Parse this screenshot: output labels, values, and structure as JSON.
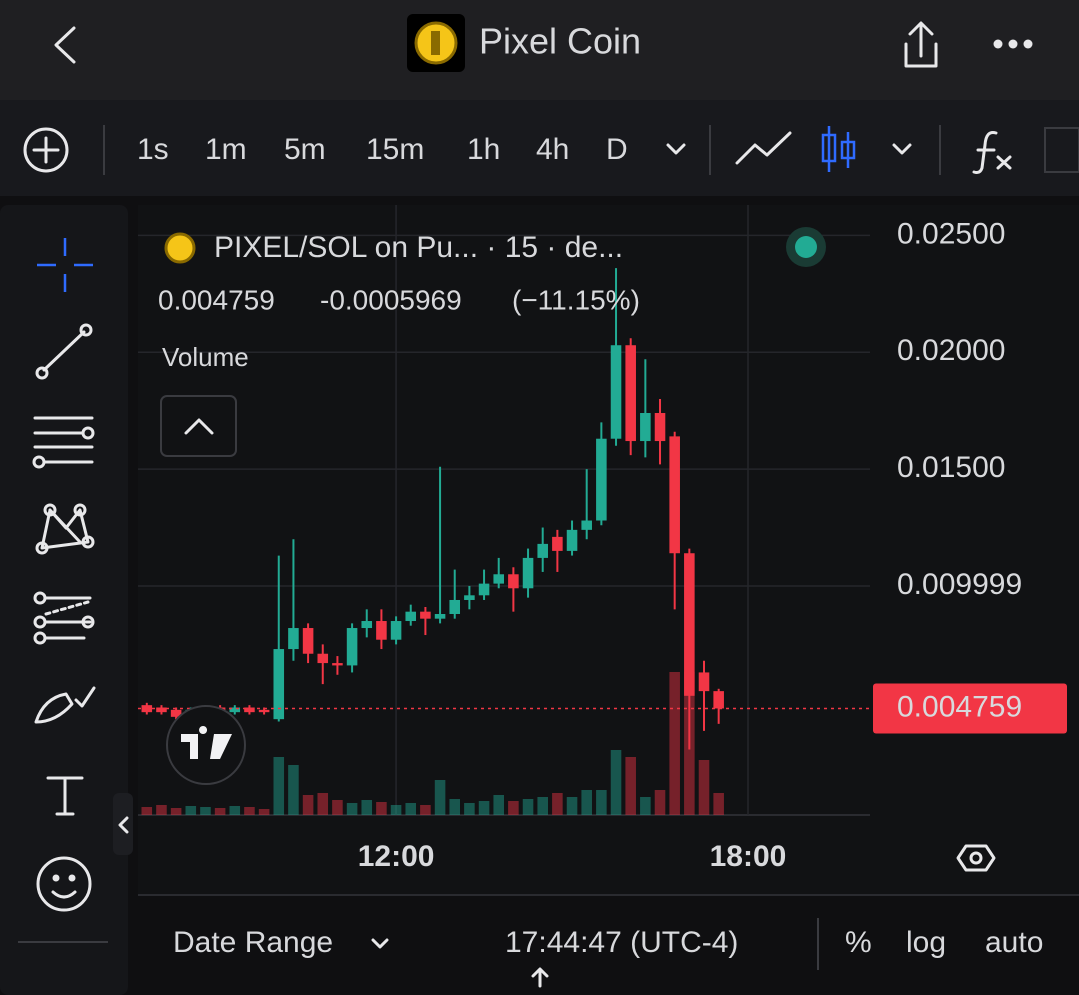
{
  "top_bar": {
    "title": "Pixel Coin"
  },
  "toolbar": {
    "intervals": [
      "1s",
      "1m",
      "5m",
      "15m",
      "1h",
      "4h",
      "D"
    ],
    "active": 3
  },
  "chart_data": {
    "type": "candlestick",
    "symbol": "PIXEL/SOL on Pu... · 15 · de...",
    "legend": {
      "price": "0.004759",
      "change": "-0.0005969",
      "change_pct": "(−11.15%)"
    },
    "volume_title": "Volume",
    "x": [
      7.75,
      8,
      8.25,
      8.5,
      8.75,
      9,
      9.25,
      9.5,
      9.75,
      10,
      10.25,
      10.5,
      10.75,
      11,
      11.25,
      11.5,
      11.75,
      12,
      12.25,
      12.5,
      12.75,
      13,
      13.25,
      13.5,
      13.75,
      14,
      14.25,
      14.5,
      14.75,
      15,
      15.25,
      15.5,
      15.75,
      16,
      16.25,
      16.5,
      16.75,
      17,
      17.25,
      17.5
    ],
    "open": [
      0.0049,
      0.0048,
      0.0047,
      0.0045,
      0.0047,
      0.0048,
      0.0046,
      0.0048,
      0.0047,
      0.0043,
      0.0073,
      0.0082,
      0.0071,
      0.0067,
      0.0066,
      0.0082,
      0.0085,
      0.0077,
      0.0085,
      0.0089,
      0.0086,
      0.0088,
      0.0094,
      0.0096,
      0.0101,
      0.0105,
      0.0099,
      0.0112,
      0.0121,
      0.0115,
      0.0124,
      0.0128,
      0.0163,
      0.0203,
      0.0162,
      0.0174,
      0.0164,
      0.0114,
      0.0063,
      0.0055
    ],
    "high": [
      0.005,
      0.0049,
      0.0048,
      0.0048,
      0.0049,
      0.0049,
      0.0049,
      0.0049,
      0.0048,
      0.0113,
      0.012,
      0.0084,
      0.0075,
      0.007,
      0.0084,
      0.009,
      0.009,
      0.0087,
      0.0092,
      0.0091,
      0.0151,
      0.0107,
      0.01,
      0.0107,
      0.0112,
      0.0108,
      0.0116,
      0.0125,
      0.0124,
      0.0128,
      0.015,
      0.017,
      0.0236,
      0.0206,
      0.0197,
      0.018,
      0.0166,
      0.0116,
      0.0068,
      0.0056
    ],
    "low": [
      0.0045,
      0.0045,
      0.0043,
      0.0044,
      0.0046,
      0.0045,
      0.0045,
      0.0045,
      0.0045,
      0.0042,
      0.0068,
      0.0067,
      0.0058,
      0.0062,
      0.0063,
      0.0078,
      0.0073,
      0.0075,
      0.0083,
      0.0079,
      0.0084,
      0.0086,
      0.009,
      0.0094,
      0.0099,
      0.0089,
      0.0095,
      0.0106,
      0.0106,
      0.0113,
      0.012,
      0.0126,
      0.016,
      0.0156,
      0.0155,
      0.0152,
      0.009,
      0.003,
      0.0038,
      0.0041
    ],
    "close": [
      0.0046,
      0.0046,
      0.0044,
      0.0047,
      0.0048,
      0.0046,
      0.0048,
      0.0046,
      0.0046,
      0.0073,
      0.0082,
      0.0071,
      0.0067,
      0.0066,
      0.0082,
      0.0085,
      0.0077,
      0.0085,
      0.0089,
      0.0086,
      0.0088,
      0.0094,
      0.0096,
      0.0101,
      0.0105,
      0.0099,
      0.0112,
      0.0118,
      0.0115,
      0.0124,
      0.0128,
      0.0163,
      0.0203,
      0.0162,
      0.0174,
      0.0162,
      0.0114,
      0.0053,
      0.0055,
      0.004759
    ],
    "volume": [
      8,
      10,
      7,
      9,
      8,
      7,
      9,
      8,
      6,
      58,
      50,
      20,
      22,
      15,
      12,
      15,
      13,
      10,
      12,
      10,
      35,
      16,
      12,
      14,
      20,
      14,
      16,
      18,
      22,
      18,
      25,
      25,
      65,
      58,
      18,
      25,
      143,
      143,
      55,
      22
    ],
    "volume_lim": [
      0,
      200
    ],
    "xlim": [
      7.6,
      20.08
    ],
    "xticks": [
      {
        "value": 12,
        "label": "12:00"
      },
      {
        "value": 18,
        "label": "18:00"
      }
    ],
    "ylim": [
      0.0002,
      0.0263
    ],
    "yticks": [
      {
        "value": 0.025,
        "label": "0.02500"
      },
      {
        "value": 0.02,
        "label": "0.02000"
      },
      {
        "value": 0.015,
        "label": "0.01500"
      },
      0.009999
    ],
    "last_price": 0.004759,
    "up_color": "#22ab94",
    "down_color": "#f23645",
    "grid": true
  },
  "bottom_bar": {
    "date_range": "Date Range",
    "time": "17:44:47 (UTC-4)",
    "percent": "%",
    "log": "log",
    "auto": "auto"
  }
}
